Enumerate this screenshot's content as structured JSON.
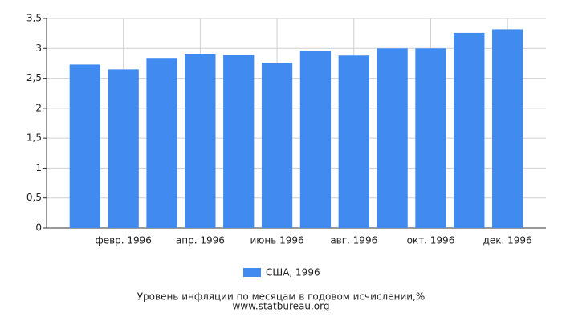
{
  "chart_data": {
    "type": "bar",
    "title": "Уровень инфляции по месяцам в годовом исчислении,%",
    "subtitle": "www.statbureau.org",
    "categories": [
      null,
      "февр. 1996",
      null,
      "апр. 1996",
      null,
      "июнь 1996",
      null,
      "авг. 1996",
      null,
      "окт. 1996",
      null,
      "дек. 1996"
    ],
    "series": [
      {
        "name": "США, 1996",
        "color": "#418bf0",
        "values": [
          2.73,
          2.65,
          2.84,
          2.91,
          2.89,
          2.76,
          2.96,
          2.88,
          3.0,
          3.0,
          3.26,
          3.32
        ]
      }
    ],
    "ylim": [
      0,
      3.5
    ],
    "yticks": [
      0,
      {
        "value": 0.5,
        "label": "0,5"
      },
      1,
      {
        "value": 1.5,
        "label": "1,5"
      },
      2,
      {
        "value": 2.5,
        "label": "2,5"
      },
      3,
      {
        "value": 3.5,
        "label": "3,5"
      }
    ],
    "grid": true,
    "legend": "bottom"
  }
}
